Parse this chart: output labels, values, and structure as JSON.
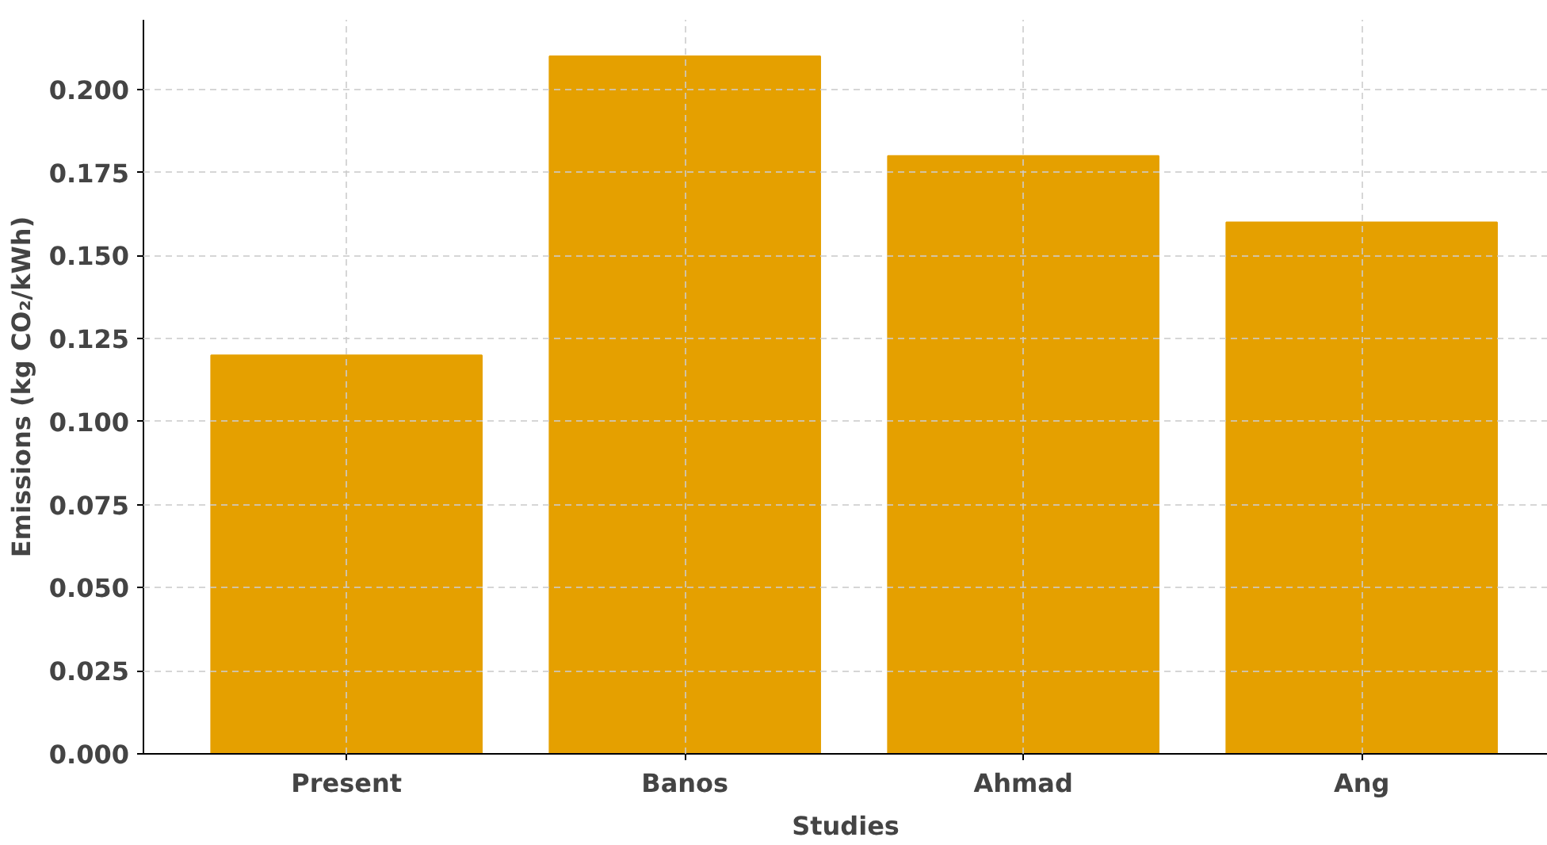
{
  "chart_data": {
    "type": "bar",
    "xlabel": "Studies",
    "ylabel": "Emissions (kg CO₂/kWh)",
    "categories": [
      "Present",
      "Banos",
      "Ahmad",
      "Ang"
    ],
    "values": [
      0.12,
      0.21,
      0.18,
      0.16
    ],
    "color": "#e5a000",
    "ylim": [
      0,
      0.221
    ],
    "yticks": [
      {
        "value": 0,
        "label": "0.000"
      },
      {
        "value": 0.025,
        "label": "0.025"
      },
      {
        "value": 0.05,
        "label": "0.050"
      },
      {
        "value": 0.075,
        "label": "0.075"
      },
      {
        "value": 0.1,
        "label": "0.100"
      },
      {
        "value": 0.125,
        "label": "0.125"
      },
      {
        "value": 0.15,
        "label": "0.150"
      },
      {
        "value": 0.175,
        "label": "0.175"
      },
      {
        "value": 0.2,
        "label": "0.200"
      }
    ],
    "grid": true
  }
}
